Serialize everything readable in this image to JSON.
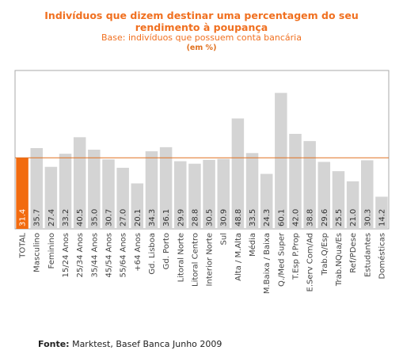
{
  "header": {
    "title_line1": "Indivíduos que dizem destinar uma percentagem do seu",
    "title_line2": "rendimento à poupança",
    "subtitle": "Base: indivíduos que possuem conta bancária",
    "unit": "(em %)"
  },
  "footer": {
    "source_label": "Fonte:",
    "source_text": "Marktest, Basef Banca Junho 2009"
  },
  "colors": {
    "highlight": "#f26b0f",
    "bar": "#d4d4d4",
    "refline": "#e07020",
    "frame": "#aaaaaa"
  },
  "chart_data": {
    "type": "bar",
    "categories": [
      "TOTAL",
      "Masculino",
      "Feminino",
      "15/24 Anos",
      "25/34 Anos",
      "35/44 Anos",
      "45/54 Anos",
      "55/64 Anos",
      "+64 Anos",
      "Gd. Lisboa",
      "Gd. Porto",
      "Litoral Norte",
      "Litoral Centro",
      "Interior Norte",
      "Sul",
      "Alta / M.Alta",
      "Média",
      "M.Baixa / Baixa",
      "Q./Med Super",
      "T.Esp P.Prop",
      "E.Serv Com/Ad",
      "Trab.Q/Esp",
      "Trab.NQua/Es",
      "Ref/PDese",
      "Estudantes",
      "Domésticas"
    ],
    "values": [
      31.4,
      35.7,
      27.4,
      33.2,
      40.5,
      35.0,
      30.7,
      27.0,
      20.1,
      34.3,
      36.1,
      29.9,
      28.8,
      30.5,
      30.9,
      48.8,
      33.5,
      24.3,
      60.1,
      42.0,
      38.8,
      29.6,
      25.5,
      21.0,
      30.3,
      14.2
    ],
    "value_labels": [
      "31.4",
      "35.7",
      "27.4",
      "33.2",
      "40.5",
      "35.0",
      "30.7",
      "27.0",
      "20.1",
      "34.3",
      "36.1",
      "29.9",
      "28.8",
      "30.5",
      "30.9",
      "48.8",
      "33.5",
      "24.3",
      "60.1",
      "42.0",
      "38.8",
      "29.6",
      "25.5",
      "21.0",
      "30.3",
      "14.2"
    ],
    "highlight_index": 0,
    "reference_value": 31.4,
    "ylim": [
      0,
      70
    ]
  }
}
